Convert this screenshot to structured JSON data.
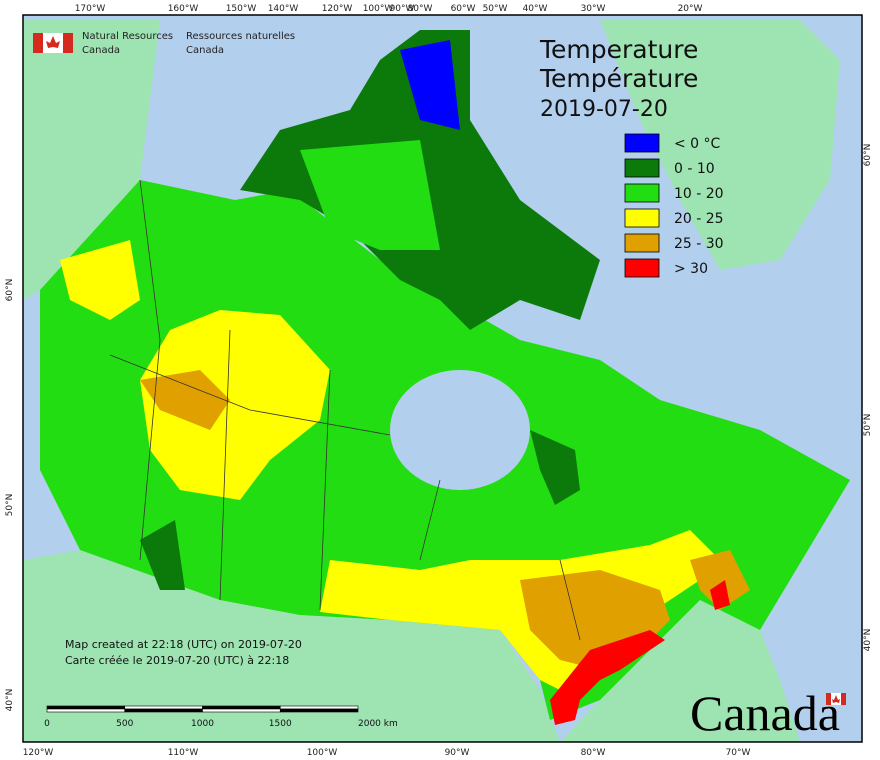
{
  "header": {
    "logo_en": [
      "Natural Resources",
      "Canada"
    ],
    "logo_fr": [
      "Ressources naturelles",
      "Canada"
    ]
  },
  "title": {
    "en": "Temperature",
    "fr": "Température",
    "date": "2019-07-20"
  },
  "legend": [
    {
      "label": "< 0 °C",
      "color": "#0000ff"
    },
    {
      "label": "0 - 10",
      "color": "#0b7a0b"
    },
    {
      "label": "10 - 20",
      "color": "#22dd11"
    },
    {
      "label": "20 - 25",
      "color": "#ffff00"
    },
    {
      "label": "25 - 30",
      "color": "#e0a000"
    },
    {
      "label": "> 30",
      "color": "#ff0000"
    }
  ],
  "graticule": {
    "top": [
      "170°W",
      "160°W",
      "150°W",
      "140°W",
      "120°W",
      "100°W",
      "90°W",
      "80°W",
      "60°W",
      "50°W",
      "40°W",
      "30°W",
      "20°W"
    ],
    "bottom": [
      "120°W",
      "110°W",
      "100°W",
      "90°W",
      "80°W",
      "70°W"
    ],
    "left": [
      "60°N",
      "50°N",
      "40°N"
    ],
    "right": [
      "60°N",
      "50°N",
      "40°N"
    ]
  },
  "scale_bar": [
    "0",
    "500",
    "1000",
    "1500",
    "2000 km"
  ],
  "credits": [
    "Map created at 22:18 (UTC) on 2019-07-20",
    "Carte créée le 2019-07-20 (UTC) à 22:18"
  ],
  "wordmark": "Canada"
}
